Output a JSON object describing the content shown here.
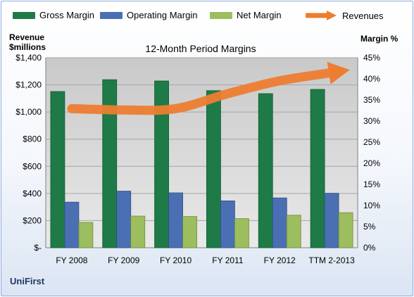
{
  "chart_data": {
    "type": "bar",
    "title": "12-Month Period Margins",
    "ylabel_left": "Revenue $millions",
    "ylabel_right": "Margin %",
    "categories": [
      "FY 2008",
      "FY 2009",
      "FY 2010",
      "FY 2011",
      "FY 2012",
      "TTM 2-2013"
    ],
    "left_axis": {
      "min": 0,
      "max": 1400,
      "step": 200,
      "ticks": [
        "$-",
        "$200",
        "$400",
        "$600",
        "$800",
        "$1,000",
        "$1,200",
        "$1,400"
      ]
    },
    "right_axis": {
      "min": 0,
      "max": 45,
      "step": 5,
      "ticks": [
        "0%",
        "5%",
        "10%",
        "15%",
        "20%",
        "25%",
        "30%",
        "35%",
        "40%",
        "45%"
      ]
    },
    "series": [
      {
        "name": "Gross Margin",
        "axis": "right",
        "color": "#1e7a46",
        "values": [
          37.0,
          39.8,
          39.5,
          37.2,
          36.5,
          37.5
        ]
      },
      {
        "name": "Operating Margin",
        "axis": "right",
        "color": "#4a6fb3",
        "values": [
          10.8,
          13.4,
          13.0,
          11.1,
          11.8,
          12.9
        ]
      },
      {
        "name": "Net Margin",
        "axis": "right",
        "color": "#9cbe5e",
        "values": [
          6.0,
          7.5,
          7.4,
          6.9,
          7.7,
          8.3
        ]
      },
      {
        "name": "Revenues",
        "axis": "left",
        "color": "#ed7d31",
        "type": "line",
        "values": [
          1025,
          1015,
          1025,
          1135,
          1230,
          1290
        ]
      }
    ],
    "legend_position": "top",
    "grid": true,
    "plot_background": "#d9d9d9"
  },
  "company": "UniFirst"
}
